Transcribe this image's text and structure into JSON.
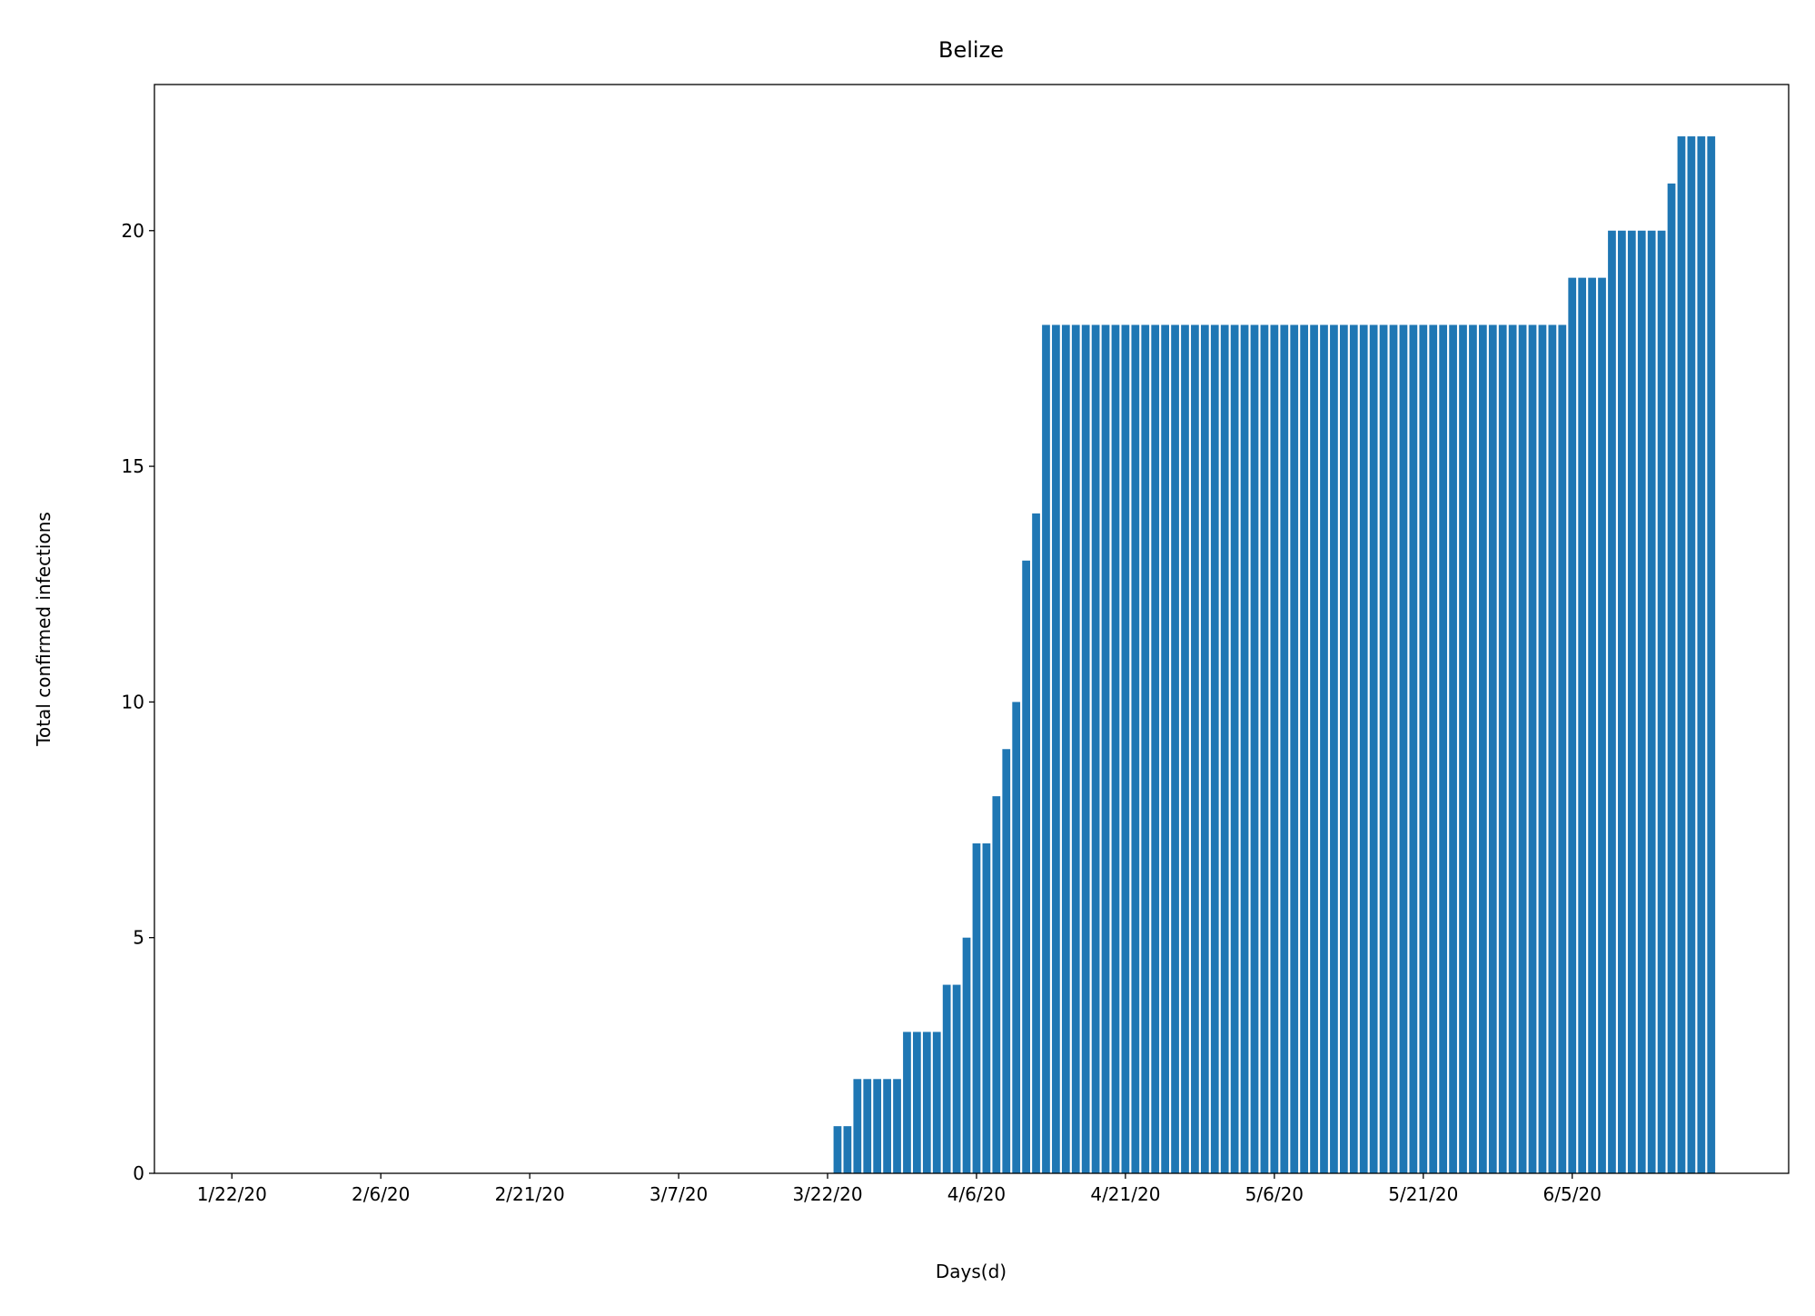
{
  "chart_data": {
    "type": "bar",
    "title": "Belize",
    "xlabel": "Days(d)",
    "ylabel": "Total confirmed infections",
    "categories": [
      "1/22/20",
      null,
      null,
      null,
      null,
      null,
      null,
      null,
      null,
      null,
      null,
      null,
      null,
      null,
      null,
      "2/6/20",
      null,
      null,
      null,
      null,
      null,
      null,
      null,
      null,
      null,
      null,
      null,
      null,
      null,
      null,
      "2/21/20",
      null,
      null,
      null,
      null,
      null,
      null,
      null,
      null,
      null,
      null,
      null,
      null,
      null,
      null,
      "3/7/20",
      null,
      null,
      null,
      null,
      null,
      null,
      null,
      null,
      null,
      null,
      null,
      null,
      null,
      null,
      "3/22/20",
      null,
      null,
      null,
      null,
      null,
      null,
      null,
      null,
      null,
      null,
      null,
      null,
      null,
      null,
      "4/6/20",
      null,
      null,
      null,
      null,
      null,
      null,
      null,
      null,
      null,
      null,
      null,
      null,
      null,
      null,
      "4/21/20",
      null,
      null,
      null,
      null,
      null,
      null,
      null,
      null,
      null,
      null,
      null,
      null,
      null,
      null,
      "5/6/20",
      null,
      null,
      null,
      null,
      null,
      null,
      null,
      null,
      null,
      null,
      null,
      null,
      null,
      null,
      "5/21/20",
      null,
      null,
      null,
      null,
      null,
      null,
      null,
      null,
      null,
      null,
      null,
      null,
      null,
      null,
      "6/5/20",
      null,
      null,
      null,
      null,
      null,
      null,
      null,
      null,
      null,
      null,
      null,
      null,
      null,
      null
    ],
    "values": [
      0,
      0,
      0,
      0,
      0,
      0,
      0,
      0,
      0,
      0,
      0,
      0,
      0,
      0,
      0,
      0,
      0,
      0,
      0,
      0,
      0,
      0,
      0,
      0,
      0,
      0,
      0,
      0,
      0,
      0,
      0,
      0,
      0,
      0,
      0,
      0,
      0,
      0,
      0,
      0,
      0,
      0,
      0,
      0,
      0,
      0,
      0,
      0,
      0,
      0,
      0,
      0,
      0,
      0,
      0,
      0,
      0,
      0,
      0,
      0,
      0,
      1,
      1,
      2,
      2,
      2,
      2,
      2,
      3,
      3,
      3,
      3,
      4,
      4,
      5,
      7,
      7,
      8,
      9,
      10,
      13,
      14,
      18,
      18,
      18,
      18,
      18,
      18,
      18,
      18,
      18,
      18,
      18,
      18,
      18,
      18,
      18,
      18,
      18,
      18,
      18,
      18,
      18,
      18,
      18,
      18,
      18,
      18,
      18,
      18,
      18,
      18,
      18,
      18,
      18,
      18,
      18,
      18,
      18,
      18,
      18,
      18,
      18,
      18,
      18,
      18,
      18,
      18,
      18,
      18,
      18,
      18,
      18,
      18,
      18,
      19,
      19,
      19,
      19,
      20,
      20,
      20,
      20,
      20,
      20,
      21,
      22,
      22,
      22,
      22
    ],
    "color": "#1f77b4",
    "xlim": [
      -7.8,
      156.8
    ],
    "ylim": [
      0,
      23.1
    ],
    "yticks": [
      0,
      5,
      10,
      15,
      20
    ]
  }
}
